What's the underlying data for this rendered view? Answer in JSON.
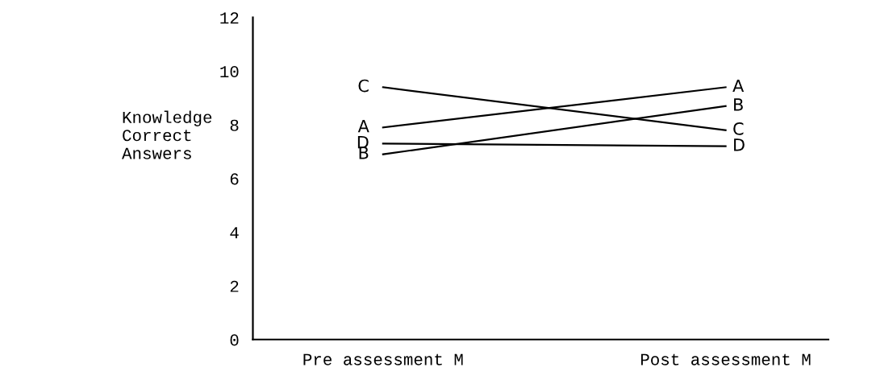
{
  "chart_data": {
    "type": "line",
    "ylabel": "Knowledge\nCorrect\nAnswers",
    "categories": [
      "Pre assessment M",
      "Post assessment M"
    ],
    "series": [
      {
        "name": "A",
        "color": "#000000",
        "values": [
          7.9,
          9.4
        ]
      },
      {
        "name": "B",
        "color": "#000000",
        "values": [
          6.9,
          8.7
        ]
      },
      {
        "name": "C",
        "color": "#000000",
        "values": [
          9.4,
          7.8
        ]
      },
      {
        "name": "D",
        "color": "#000000",
        "values": [
          7.3,
          7.2
        ]
      }
    ],
    "ylim": [
      0,
      12
    ],
    "yticks": [
      0,
      2,
      4,
      6,
      8,
      10,
      12
    ],
    "grid": false,
    "legend": false,
    "marker": "none",
    "line_style": "solid"
  }
}
